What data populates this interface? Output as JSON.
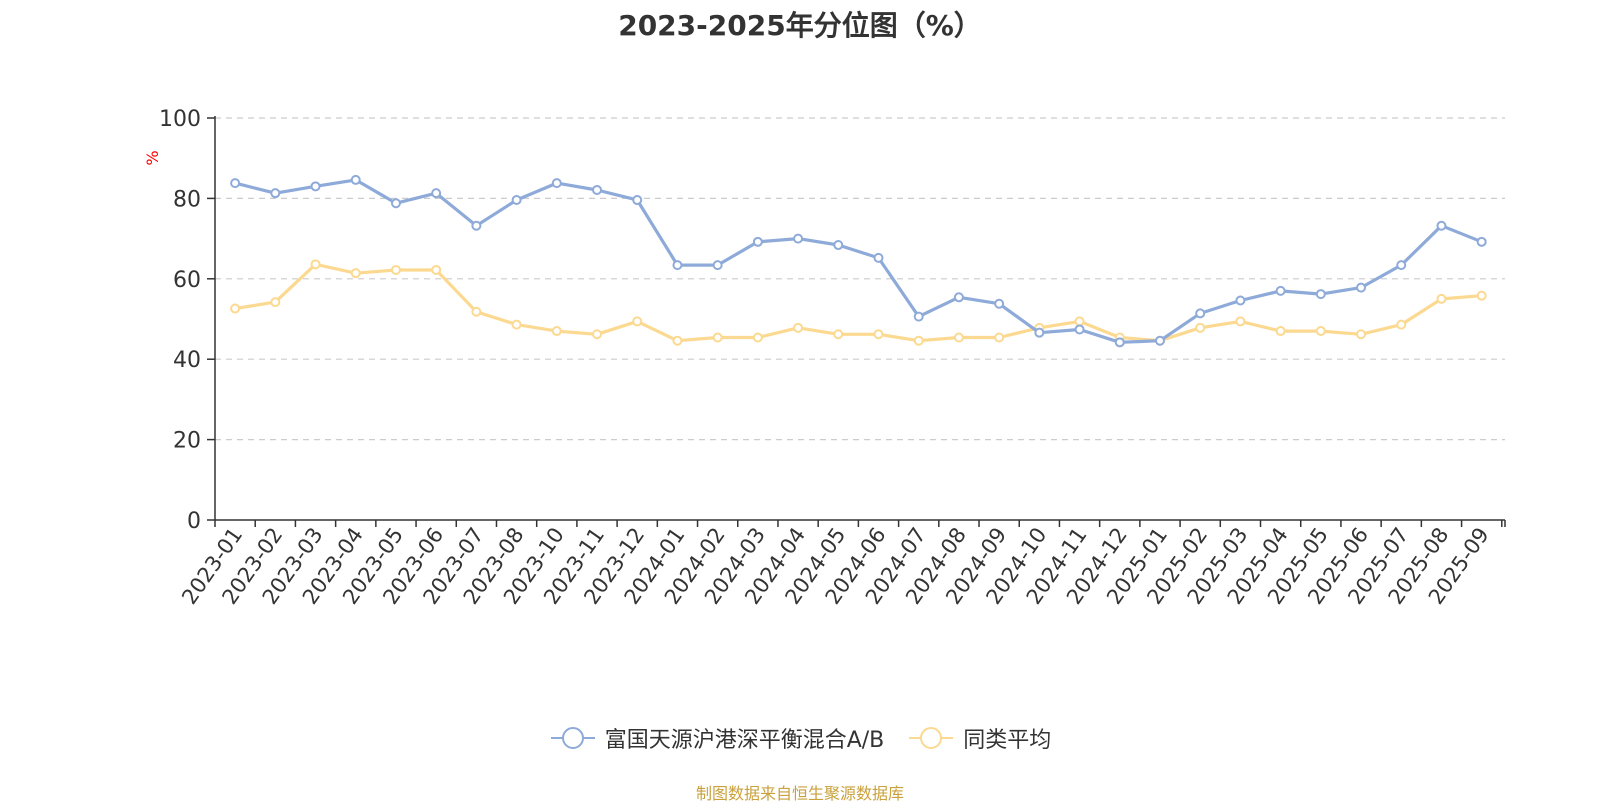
{
  "chart_data": {
    "type": "line",
    "title": "2023-2025年分位图（%）",
    "ylabel": "%",
    "ylim": [
      0,
      100
    ],
    "yticks": [
      0,
      20,
      40,
      60,
      80,
      100
    ],
    "grid": true,
    "legend_position": "bottom",
    "categories": [
      "2023-01",
      "2023-02",
      "2023-03",
      "2023-04",
      "2023-05",
      "2023-06",
      "2023-07",
      "2023-08",
      "2023-10",
      "2023-11",
      "2023-12",
      "2024-01",
      "2024-02",
      "2024-03",
      "2024-04",
      "2024-05",
      "2024-06",
      "2024-07",
      "2024-08",
      "2024-09",
      "2024-10",
      "2024-11",
      "2024-12",
      "2025-01",
      "2025-02",
      "2025-03",
      "2025-04",
      "2025-05",
      "2025-06",
      "2025-07",
      "2025-08",
      "2025-09"
    ],
    "series": [
      {
        "name": "富国天源沪港深平衡混合A/B",
        "color": "#8eaad9",
        "values": [
          83.8,
          81.3,
          83.0,
          84.6,
          78.8,
          81.3,
          73.2,
          79.6,
          83.8,
          82.1,
          79.6,
          63.4,
          63.4,
          69.2,
          70.0,
          68.4,
          65.2,
          50.6,
          55.4,
          53.8,
          46.6,
          47.4,
          44.2,
          44.6,
          51.4,
          54.6,
          57.0,
          56.2,
          57.8,
          63.4,
          73.2,
          69.2
        ]
      },
      {
        "name": "同类平均",
        "color": "#fcd990",
        "values": [
          52.6,
          54.2,
          63.6,
          61.4,
          62.2,
          62.2,
          51.8,
          48.6,
          47.0,
          46.2,
          49.4,
          44.6,
          45.4,
          45.4,
          47.8,
          46.2,
          46.2,
          44.6,
          45.4,
          45.4,
          47.8,
          49.4,
          45.4,
          44.6,
          47.8,
          49.4,
          47.0,
          47.0,
          46.2,
          48.6,
          55.0,
          55.8
        ]
      }
    ]
  },
  "footer": {
    "source": "制图数据来自恒生聚源数据库",
    "source_color": "#c9a13d"
  },
  "colors": {
    "axis": "#333333",
    "grid": "#cccccc",
    "ylabel": "#ff0000",
    "marker_fill": "#ffffff"
  }
}
